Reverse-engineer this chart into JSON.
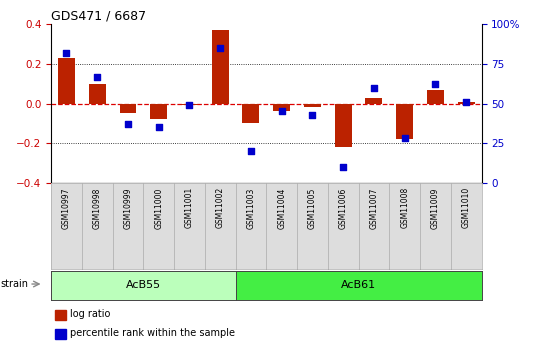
{
  "title": "GDS471 / 6687",
  "samples": [
    "GSM10997",
    "GSM10998",
    "GSM10999",
    "GSM11000",
    "GSM11001",
    "GSM11002",
    "GSM11003",
    "GSM11004",
    "GSM11005",
    "GSM11006",
    "GSM11007",
    "GSM11008",
    "GSM11009",
    "GSM11010"
  ],
  "log_ratio": [
    0.23,
    0.1,
    -0.05,
    -0.08,
    -0.01,
    0.37,
    -0.1,
    -0.04,
    -0.02,
    -0.22,
    0.03,
    -0.18,
    0.07,
    0.01
  ],
  "percentile": [
    82,
    67,
    37,
    35,
    49,
    85,
    20,
    45,
    43,
    10,
    60,
    28,
    62,
    51
  ],
  "ylim_left": [
    -0.4,
    0.4
  ],
  "ylim_right": [
    0,
    100
  ],
  "yticks_left": [
    -0.4,
    -0.2,
    0.0,
    0.2,
    0.4
  ],
  "yticks_right": [
    0,
    25,
    50,
    75,
    100
  ],
  "ytick_labels_right": [
    "0",
    "25",
    "50",
    "75",
    "100%"
  ],
  "hlines": [
    0.2,
    -0.2
  ],
  "bar_color": "#bb2200",
  "dot_color": "#0000cc",
  "zero_line_color": "#dd0000",
  "strains": [
    {
      "label": "AcB55",
      "start": 0,
      "end": 6,
      "color": "#bbffbb"
    },
    {
      "label": "AcB61",
      "start": 6,
      "end": 14,
      "color": "#44ee44"
    }
  ],
  "legend_items": [
    {
      "label": "log ratio",
      "color": "#bb2200"
    },
    {
      "label": "percentile rank within the sample",
      "color": "#0000cc"
    }
  ],
  "strain_label": "strain",
  "bar_width": 0.55,
  "n_acb55": 6,
  "n_total": 14
}
